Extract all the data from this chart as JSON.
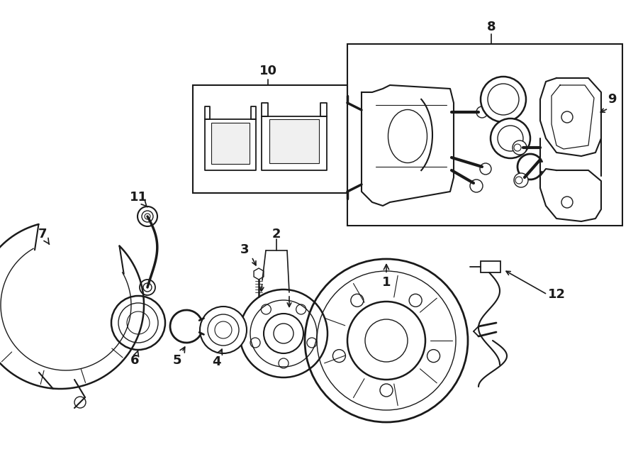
{
  "bg_color": "#ffffff",
  "line_color": "#1a1a1a",
  "fig_width": 9.0,
  "fig_height": 6.61,
  "dpi": 100
}
